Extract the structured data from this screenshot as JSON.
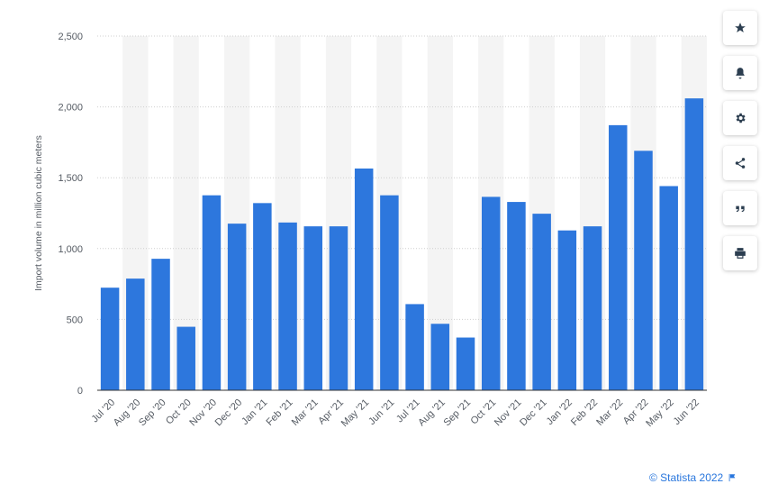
{
  "chart_data": {
    "type": "bar",
    "categories": [
      "Jul '20",
      "Aug '20",
      "Sep '20",
      "Oct '20",
      "Nov '20",
      "Dec '20",
      "Jan '21",
      "Feb '21",
      "Mar '21",
      "Apr '21",
      "May '21",
      "Jun '21",
      "Jul '21",
      "Aug '21",
      "Sep '21",
      "Oct '21",
      "Nov '21",
      "Dec '21",
      "Jan '22",
      "Feb '22",
      "Mar '22",
      "Apr '22",
      "May '22",
      "Jun '22"
    ],
    "values": [
      724,
      788,
      928,
      448,
      1376,
      1176,
      1321,
      1184,
      1157,
      1157,
      1565,
      1376,
      608,
      469,
      372,
      1365,
      1329,
      1246,
      1128,
      1157,
      1871,
      1690,
      1441,
      2060
    ],
    "ylabel": "Import volume in million cubic meters",
    "xlabel": "",
    "ylim": [
      0,
      2500
    ],
    "yticks": [
      0,
      500,
      1000,
      1500,
      2000,
      2500
    ],
    "ytick_labels": [
      "0",
      "500",
      "1,000",
      "1,500",
      "2,000",
      "2,500"
    ],
    "bar_color": "#2d77dd",
    "grid": true
  },
  "toolbar": {
    "buttons": [
      {
        "name": "favorite",
        "icon": "star-icon"
      },
      {
        "name": "notification",
        "icon": "bell-icon"
      },
      {
        "name": "settings",
        "icon": "gear-icon"
      },
      {
        "name": "share",
        "icon": "share-icon"
      },
      {
        "name": "cite",
        "icon": "quote-icon"
      },
      {
        "name": "print",
        "icon": "print-icon"
      }
    ]
  },
  "footer": {
    "credit": "© Statista 2022",
    "flag_icon": "flag-icon"
  }
}
